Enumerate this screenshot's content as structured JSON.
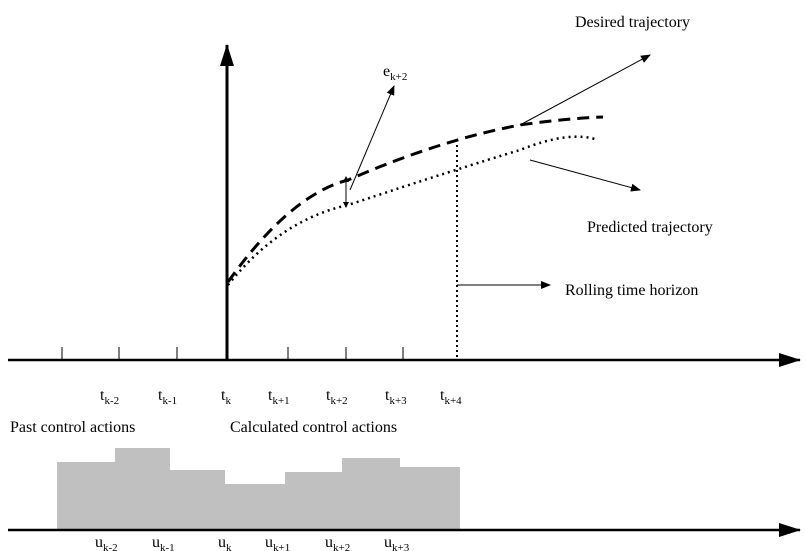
{
  "labels": {
    "desired": "Desired trajectory",
    "predicted": "Predicted trajectory",
    "horizon": "Rolling time horizon",
    "past": "Past control actions",
    "calculated": "Calculated control actions",
    "error": {
      "base": "e",
      "sub": "k+2"
    }
  },
  "time_ticks": [
    {
      "base": "t",
      "sub": "k-2"
    },
    {
      "base": "t",
      "sub": "k-1"
    },
    {
      "base": "t",
      "sub": "k"
    },
    {
      "base": "t",
      "sub": "k+1"
    },
    {
      "base": "t",
      "sub": "k+2"
    },
    {
      "base": "t",
      "sub": "k+3"
    },
    {
      "base": "t",
      "sub": "k+4"
    }
  ],
  "control_ticks": [
    {
      "base": "u",
      "sub": "k-2"
    },
    {
      "base": "u",
      "sub": "k-1"
    },
    {
      "base": "u",
      "sub": "k"
    },
    {
      "base": "u",
      "sub": "k+1"
    },
    {
      "base": "u",
      "sub": "k+2"
    },
    {
      "base": "u",
      "sub": "k+3"
    }
  ]
}
